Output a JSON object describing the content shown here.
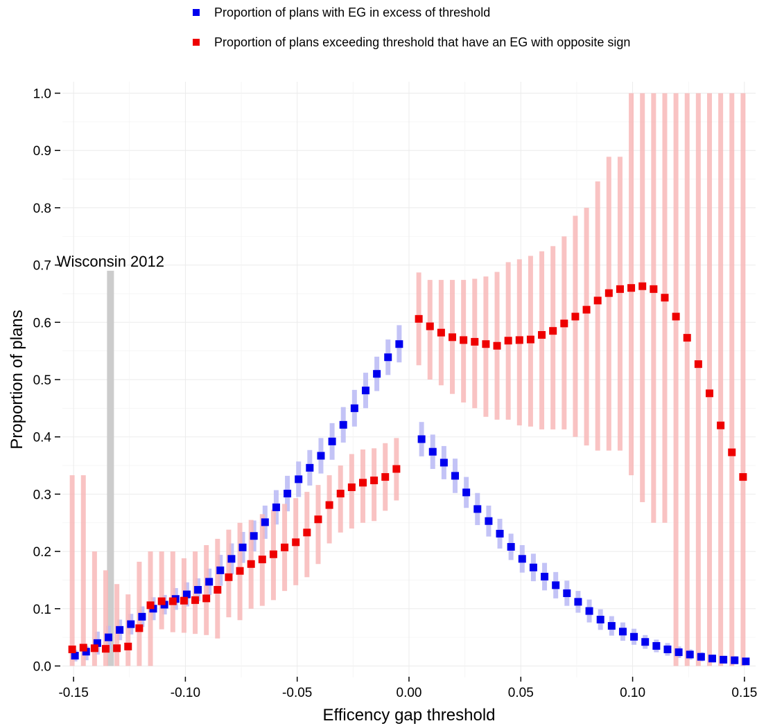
{
  "chart_data": {
    "type": "scatter",
    "xlabel": "Efficency gap threshold",
    "ylabel": "Proportion of plans",
    "xlim": [
      -0.155,
      0.155
    ],
    "ylim": [
      -0.02,
      1.02
    ],
    "xticks": [
      -0.15,
      -0.1,
      -0.05,
      0.0,
      0.05,
      0.1,
      0.15
    ],
    "xtick_labels": [
      "-0.15",
      "-0.10",
      "-0.05",
      "0.00",
      "0.05",
      "0.10",
      "0.15"
    ],
    "yticks": [
      0.0,
      0.1,
      0.2,
      0.3,
      0.4,
      0.5,
      0.6,
      0.7,
      0.8,
      0.9,
      1.0
    ],
    "ytick_labels": [
      "0.0",
      "0.1",
      "0.2",
      "0.3",
      "0.4",
      "0.5",
      "0.6",
      "0.7",
      "0.8",
      "0.9",
      "1.0"
    ],
    "grid": true,
    "legend_position": "top",
    "annotation": {
      "text": "Wisconsin 2012",
      "x": -0.1335,
      "ymax": 0.69,
      "color": "#cccccc"
    },
    "x": [
      -0.15,
      -0.145,
      -0.14,
      -0.135,
      -0.13,
      -0.125,
      -0.12,
      -0.115,
      -0.11,
      -0.105,
      -0.1,
      -0.095,
      -0.09,
      -0.085,
      -0.08,
      -0.075,
      -0.07,
      -0.065,
      -0.06,
      -0.055,
      -0.05,
      -0.045,
      -0.04,
      -0.035,
      -0.03,
      -0.025,
      -0.02,
      -0.015,
      -0.01,
      -0.005,
      0.005,
      0.01,
      0.015,
      0.02,
      0.025,
      0.03,
      0.035,
      0.04,
      0.045,
      0.05,
      0.055,
      0.06,
      0.065,
      0.07,
      0.075,
      0.08,
      0.085,
      0.09,
      0.095,
      0.1,
      0.105,
      0.11,
      0.115,
      0.12,
      0.125,
      0.13,
      0.135,
      0.14,
      0.145,
      0.15
    ],
    "series": [
      {
        "name": "Proportion of plans with EG in excess of threshold",
        "color": "#0000ee",
        "band_color": "#b8b8f4",
        "values": [
          0.018,
          0.025,
          0.04,
          0.05,
          0.063,
          0.073,
          0.086,
          0.1,
          0.107,
          0.117,
          0.125,
          0.133,
          0.147,
          0.167,
          0.187,
          0.207,
          0.227,
          0.251,
          0.277,
          0.301,
          0.326,
          0.346,
          0.367,
          0.392,
          0.421,
          0.45,
          0.481,
          0.51,
          0.539,
          0.562,
          0.396,
          0.374,
          0.355,
          0.332,
          0.303,
          0.274,
          0.253,
          0.231,
          0.208,
          0.187,
          0.172,
          0.156,
          0.141,
          0.127,
          0.112,
          0.096,
          0.081,
          0.07,
          0.06,
          0.051,
          0.042,
          0.035,
          0.029,
          0.024,
          0.02,
          0.016,
          0.013,
          0.011,
          0.01,
          0.008
        ],
        "lower": [
          0.008,
          0.01,
          0.02,
          0.03,
          0.045,
          0.055,
          0.068,
          0.08,
          0.09,
          0.098,
          0.104,
          0.113,
          0.124,
          0.14,
          0.16,
          0.18,
          0.2,
          0.222,
          0.247,
          0.27,
          0.295,
          0.315,
          0.336,
          0.36,
          0.39,
          0.418,
          0.45,
          0.48,
          0.508,
          0.53,
          0.366,
          0.344,
          0.326,
          0.302,
          0.276,
          0.246,
          0.226,
          0.205,
          0.185,
          0.163,
          0.148,
          0.132,
          0.118,
          0.105,
          0.093,
          0.076,
          0.063,
          0.053,
          0.044,
          0.037,
          0.03,
          0.024,
          0.018,
          0.014,
          0.011,
          0.008,
          0.006,
          0.004,
          0.003,
          0.002
        ],
        "upper": [
          0.028,
          0.035,
          0.06,
          0.07,
          0.081,
          0.091,
          0.104,
          0.12,
          0.124,
          0.136,
          0.146,
          0.153,
          0.17,
          0.194,
          0.214,
          0.234,
          0.254,
          0.28,
          0.307,
          0.332,
          0.357,
          0.377,
          0.398,
          0.424,
          0.452,
          0.482,
          0.512,
          0.54,
          0.57,
          0.595,
          0.426,
          0.404,
          0.384,
          0.362,
          0.33,
          0.302,
          0.28,
          0.257,
          0.231,
          0.211,
          0.196,
          0.18,
          0.164,
          0.149,
          0.131,
          0.116,
          0.099,
          0.087,
          0.076,
          0.065,
          0.054,
          0.046,
          0.04,
          0.034,
          0.029,
          0.024,
          0.02,
          0.018,
          0.017,
          0.014
        ]
      },
      {
        "name": "Proportion of plans exceeding threshold that have an EG with opposite sign",
        "color": "#ee0000",
        "band_color": "#f8b8b8",
        "values": [
          0.029,
          0.032,
          0.031,
          0.03,
          0.031,
          0.034,
          0.066,
          0.106,
          0.113,
          0.113,
          0.114,
          0.115,
          0.118,
          0.133,
          0.155,
          0.166,
          0.178,
          0.186,
          0.195,
          0.207,
          0.216,
          0.233,
          0.256,
          0.281,
          0.301,
          0.312,
          0.32,
          0.324,
          0.33,
          0.344,
          0.606,
          0.593,
          0.582,
          0.574,
          0.569,
          0.566,
          0.562,
          0.559,
          0.568,
          0.569,
          0.57,
          0.578,
          0.585,
          0.598,
          0.61,
          0.622,
          0.638,
          0.651,
          0.658,
          0.66,
          0.663,
          0.658,
          0.643,
          0.61,
          0.573,
          0.527,
          0.476,
          0.42,
          0.373,
          0.33
        ],
        "lower": [
          0.0,
          0.0,
          0.0,
          0.0,
          0.0,
          0.0,
          0.0,
          0.0,
          0.064,
          0.059,
          0.058,
          0.056,
          0.054,
          0.048,
          0.085,
          0.08,
          0.1,
          0.105,
          0.115,
          0.131,
          0.141,
          0.155,
          0.178,
          0.214,
          0.233,
          0.24,
          0.25,
          0.253,
          0.271,
          0.289,
          0.525,
          0.5,
          0.49,
          0.475,
          0.46,
          0.45,
          0.435,
          0.43,
          0.43,
          0.42,
          0.418,
          0.413,
          0.413,
          0.413,
          0.4,
          0.385,
          0.376,
          0.376,
          0.376,
          0.333,
          0.286,
          0.25,
          0.25,
          0.0,
          0.0,
          0.0,
          0.0,
          0.0,
          0.0,
          0.0
        ],
        "upper": [
          0.333,
          0.333,
          0.2,
          0.167,
          0.143,
          0.125,
          0.182,
          0.2,
          0.2,
          0.2,
          0.188,
          0.2,
          0.211,
          0.222,
          0.238,
          0.25,
          0.255,
          0.265,
          0.273,
          0.283,
          0.293,
          0.304,
          0.316,
          0.333,
          0.35,
          0.37,
          0.378,
          0.38,
          0.389,
          0.398,
          0.687,
          0.674,
          0.674,
          0.674,
          0.674,
          0.676,
          0.68,
          0.688,
          0.705,
          0.71,
          0.716,
          0.724,
          0.733,
          0.75,
          0.786,
          0.8,
          0.846,
          0.889,
          0.889,
          1.0,
          1.0,
          1.0,
          1.0,
          1.0,
          1.0,
          1.0,
          1.0,
          1.0,
          1.0,
          1.0
        ]
      }
    ]
  }
}
